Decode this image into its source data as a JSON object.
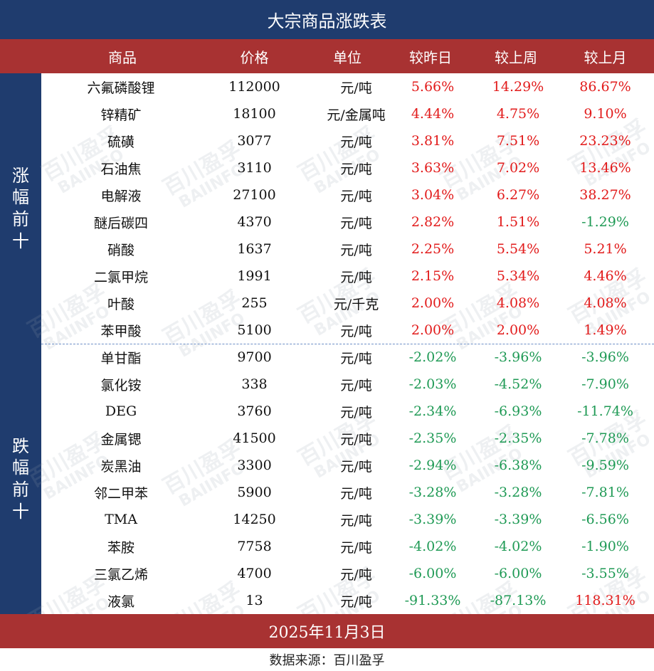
{
  "title": "大宗商品涨跌表",
  "header": {
    "name": "商品",
    "price": "价格",
    "unit": "单位",
    "day": "较昨日",
    "week": "较上周",
    "month": "较上月"
  },
  "side_labels": {
    "up": [
      "涨",
      "幅",
      "前",
      "十"
    ],
    "down": [
      "跌",
      "幅",
      "前",
      "十"
    ]
  },
  "rows": [
    {
      "name": "六氟磷酸锂",
      "price": "112000",
      "unit": "元/吨",
      "day": "5.66%",
      "week": "14.29%",
      "month": "86.67%"
    },
    {
      "name": "锌精矿",
      "price": "18100",
      "unit": "元/金属吨",
      "day": "4.44%",
      "week": "4.75%",
      "month": "9.10%"
    },
    {
      "name": "硫磺",
      "price": "3077",
      "unit": "元/吨",
      "day": "3.81%",
      "week": "7.51%",
      "month": "23.23%"
    },
    {
      "name": "石油焦",
      "price": "3110",
      "unit": "元/吨",
      "day": "3.63%",
      "week": "7.02%",
      "month": "13.46%"
    },
    {
      "name": "电解液",
      "price": "27100",
      "unit": "元/吨",
      "day": "3.04%",
      "week": "6.27%",
      "month": "38.27%"
    },
    {
      "name": "醚后碳四",
      "price": "4370",
      "unit": "元/吨",
      "day": "2.82%",
      "week": "1.51%",
      "month": "-1.29%"
    },
    {
      "name": "硝酸",
      "price": "1637",
      "unit": "元/吨",
      "day": "2.25%",
      "week": "5.54%",
      "month": "5.21%"
    },
    {
      "name": "二氯甲烷",
      "price": "1991",
      "unit": "元/吨",
      "day": "2.15%",
      "week": "5.34%",
      "month": "4.46%"
    },
    {
      "name": "叶酸",
      "price": "255",
      "unit": "元/千克",
      "day": "2.00%",
      "week": "4.08%",
      "month": "4.08%"
    },
    {
      "name": "苯甲酸",
      "price": "5100",
      "unit": "元/吨",
      "day": "2.00%",
      "week": "2.00%",
      "month": "1.49%"
    },
    {
      "name": "单甘酯",
      "price": "9700",
      "unit": "元/吨",
      "day": "-2.02%",
      "week": "-3.96%",
      "month": "-3.96%"
    },
    {
      "name": "氯化铵",
      "price": "338",
      "unit": "元/吨",
      "day": "-2.03%",
      "week": "-4.52%",
      "month": "-7.90%"
    },
    {
      "name": "DEG",
      "price": "3760",
      "unit": "元/吨",
      "day": "-2.34%",
      "week": "-6.93%",
      "month": "-11.74%"
    },
    {
      "name": "金属锶",
      "price": "41500",
      "unit": "元/吨",
      "day": "-2.35%",
      "week": "-2.35%",
      "month": "-7.78%"
    },
    {
      "name": "炭黑油",
      "price": "3300",
      "unit": "元/吨",
      "day": "-2.94%",
      "week": "-6.38%",
      "month": "-9.59%"
    },
    {
      "name": "邻二甲苯",
      "price": "5900",
      "unit": "元/吨",
      "day": "-3.28%",
      "week": "-3.28%",
      "month": "-7.81%"
    },
    {
      "name": "TMA",
      "price": "14250",
      "unit": "元/吨",
      "day": "-3.39%",
      "week": "-3.39%",
      "month": "-6.56%"
    },
    {
      "name": "苯胺",
      "price": "7758",
      "unit": "元/吨",
      "day": "-4.02%",
      "week": "-4.02%",
      "month": "-1.90%"
    },
    {
      "name": "三氯乙烯",
      "price": "4700",
      "unit": "元/吨",
      "day": "-6.00%",
      "week": "-6.00%",
      "month": "-3.55%"
    },
    {
      "name": "液氯",
      "price": "13",
      "unit": "元/吨",
      "day": "-91.33%",
      "week": "-87.13%",
      "month": "118.31%"
    }
  ],
  "date": "2025年11月3日",
  "source": "数据来源：百川盈孚",
  "watermark": [
    "百川盈孚",
    "BAIINFO"
  ],
  "colors": {
    "title_bg": "#1f3c6e",
    "header_bg": "#a83232",
    "positive": "#e21b1b",
    "negative": "#1f9a55"
  }
}
